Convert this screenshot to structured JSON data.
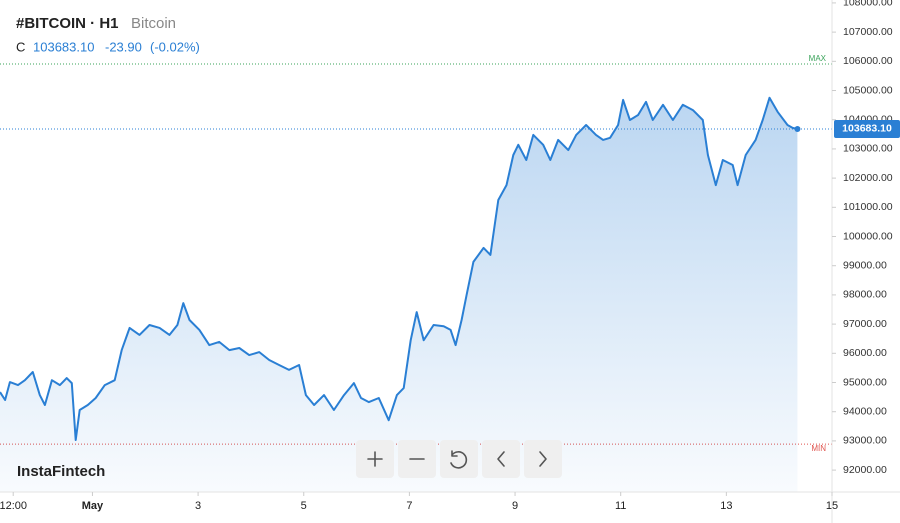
{
  "chart_data": {
    "type": "area",
    "title": "#BITCOIN · H1",
    "subtitle": "Bitcoin",
    "color": "#2a7fd4",
    "x": [
      0,
      2.3,
      4.5,
      8.2,
      11.3,
      14.9,
      18.1,
      20.4,
      23.6,
      27.2,
      30.3,
      32.6,
      34.4,
      36.2,
      39.9,
      43.5,
      47.6,
      52.1,
      55.3,
      58.9,
      63.4,
      67.9,
      72.5,
      77.0,
      80.6,
      83.3,
      86.1,
      90.6,
      95.1,
      99.6,
      104.2,
      108.7,
      113.2,
      117.8,
      122.3,
      126.8,
      131.3,
      135.9,
      139.0,
      142.7,
      147.2,
      151.7,
      156.3,
      160.8,
      164.0,
      167.6,
      172.1,
      176.6,
      180.3,
      183.4,
      186.6,
      189.3,
      192.5,
      197.0,
      201.6,
      204.7,
      207.0,
      209.7,
      212.0,
      215.1,
      219.7,
      222.8,
      226.4,
      230.1,
      233.2,
      235.5,
      239.1,
      242.3,
      246.8,
      250.0,
      253.6,
      258.2,
      261.8,
      266.3,
      270.8,
      274.0,
      277.2,
      280.8,
      283.1,
      286.2,
      289.9,
      293.5,
      296.6,
      301.2,
      305.7,
      310.2,
      314.8,
      319.3,
      321.6,
      325.2,
      328.4,
      332.9,
      335.1,
      338.8,
      343.3,
      346.5,
      349.6,
      353.3,
      357.8,
      360.1,
      362.3
    ],
    "values": [
      94670,
      94400,
      95015,
      94910,
      95080,
      95360,
      94570,
      94230,
      95080,
      94910,
      95150,
      94980,
      93030,
      94060,
      94230,
      94470,
      94910,
      95080,
      96110,
      96870,
      96630,
      96970,
      96870,
      96630,
      96970,
      97720,
      97140,
      96800,
      96280,
      96390,
      96110,
      96180,
      95940,
      96040,
      95770,
      95600,
      95430,
      95600,
      94570,
      94230,
      94570,
      94060,
      94570,
      94980,
      94470,
      94330,
      94470,
      93710,
      94570,
      94810,
      96450,
      97410,
      96450,
      96970,
      96930,
      96800,
      96280,
      97140,
      98000,
      99130,
      99610,
      99370,
      101250,
      101760,
      102790,
      103140,
      102620,
      103480,
      103140,
      102620,
      103310,
      102960,
      103480,
      103820,
      103480,
      103310,
      103380,
      103820,
      104680,
      103990,
      104160,
      104610,
      103990,
      104510,
      103990,
      104510,
      104330,
      103990,
      102790,
      101760,
      102620,
      102450,
      101760,
      102790,
      103310,
      103990,
      104750,
      104270,
      103820,
      103720,
      103683.1
    ],
    "xlim": [
      0,
      378
    ],
    "xticks": [
      {
        "value": 6,
        "label": "12:00"
      },
      {
        "value": 42,
        "label": "May"
      },
      {
        "value": 90,
        "label": "3"
      },
      {
        "value": 138,
        "label": "5"
      },
      {
        "value": 186,
        "label": "7"
      },
      {
        "value": 234,
        "label": "9"
      },
      {
        "value": 282,
        "label": "11"
      },
      {
        "value": 330,
        "label": "13"
      },
      {
        "value": 378,
        "label": "15"
      }
    ],
    "ylim": [
      91250,
      108100
    ],
    "yticks": [
      {
        "value": 92000,
        "label": "92000.00"
      },
      {
        "value": 93000,
        "label": "93000.00"
      },
      {
        "value": 94000,
        "label": "94000.00"
      },
      {
        "value": 95000,
        "label": "95000.00"
      },
      {
        "value": 96000,
        "label": "96000.00"
      },
      {
        "value": 97000,
        "label": "97000.00"
      },
      {
        "value": 98000,
        "label": "98000.00"
      },
      {
        "value": 99000,
        "label": "99000.00"
      },
      {
        "value": 100000,
        "label": "100000.00"
      },
      {
        "value": 101000,
        "label": "101000.00"
      },
      {
        "value": 102000,
        "label": "102000.00"
      },
      {
        "value": 103000,
        "label": "103000.00"
      },
      {
        "value": 104000,
        "label": "104000.00"
      },
      {
        "value": 105000,
        "label": "105000.00"
      },
      {
        "value": 106000,
        "label": "106000.00"
      },
      {
        "value": 107000,
        "label": "107000.00"
      },
      {
        "value": 108000,
        "label": "108000.00"
      }
    ],
    "max_line": {
      "label": "MAX",
      "value": 105910,
      "color": "#3aa35a"
    },
    "min_line": {
      "label": "MIN",
      "value": 92890,
      "color": "#e0524c"
    }
  },
  "quote": {
    "label": "C",
    "close": "103683.10",
    "change": "-23.90",
    "change_pct": "(-0.02%)"
  },
  "watermark": "InstaFintech"
}
